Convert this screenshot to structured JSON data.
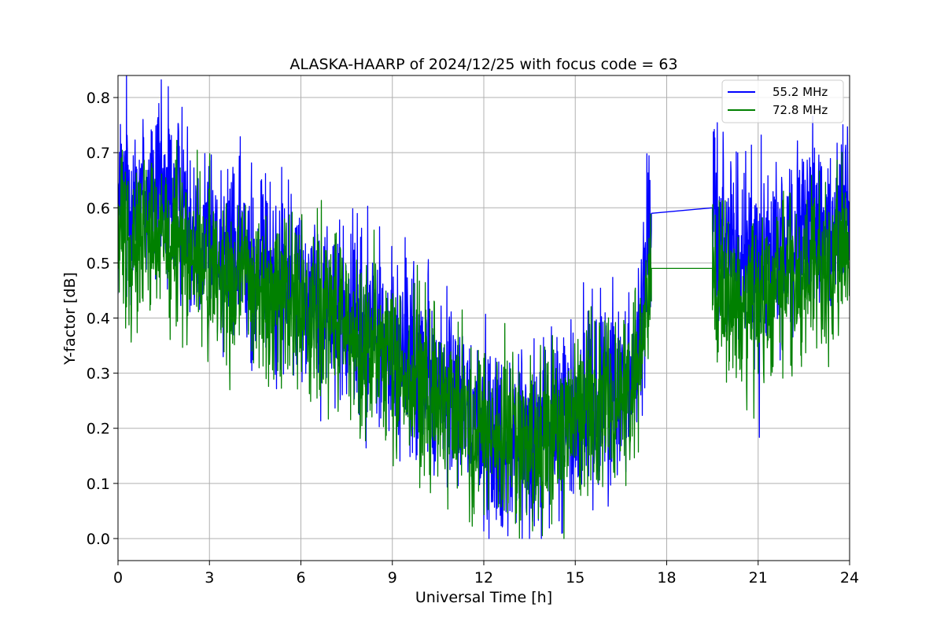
{
  "chart_data": {
    "type": "line",
    "title": "ALASKA-HAARP of 2024/12/25 with focus code = 63",
    "xlabel": "Universal Time [h]",
    "ylabel": "Y-factor [dB]",
    "xlim": [
      0,
      24
    ],
    "ylim": [
      -0.04,
      0.84
    ],
    "xticks": [
      0,
      3,
      6,
      9,
      12,
      15,
      18,
      21,
      24
    ],
    "xtick_labels": [
      "0",
      "3",
      "6",
      "9",
      "12",
      "15",
      "18",
      "21",
      "24"
    ],
    "yticks": [
      0.0,
      0.1,
      0.2,
      0.3,
      0.4,
      0.5,
      0.6,
      0.7,
      0.8
    ],
    "ytick_labels": [
      "0.0",
      "0.1",
      "0.2",
      "0.3",
      "0.4",
      "0.5",
      "0.6",
      "0.7",
      "0.8"
    ],
    "grid": true,
    "legend_position": "top-right",
    "series": [
      {
        "name": "55.2 MHz",
        "color": "#0000ff",
        "x": [
          0,
          0.5,
          1,
          1.5,
          2,
          2.5,
          3,
          3.5,
          4,
          4.5,
          5,
          5.5,
          6,
          6.5,
          7,
          7.5,
          8,
          8.5,
          9,
          9.5,
          10,
          10.5,
          11,
          11.5,
          12,
          12.5,
          13,
          13.5,
          14,
          14.5,
          15,
          15.5,
          16,
          16.5,
          17,
          17.5,
          19.5,
          20,
          20.5,
          21,
          21.5,
          22,
          22.5,
          23,
          23.5,
          24
        ],
        "y": [
          0.6,
          0.62,
          0.63,
          0.62,
          0.61,
          0.58,
          0.55,
          0.53,
          0.51,
          0.5,
          0.48,
          0.46,
          0.45,
          0.44,
          0.42,
          0.41,
          0.39,
          0.37,
          0.35,
          0.33,
          0.3,
          0.27,
          0.25,
          0.22,
          0.2,
          0.18,
          0.17,
          0.17,
          0.19,
          0.21,
          0.23,
          0.25,
          0.27,
          0.29,
          0.31,
          0.59,
          0.6,
          0.52,
          0.5,
          0.5,
          0.51,
          0.53,
          0.55,
          0.56,
          0.57,
          0.58
        ]
      },
      {
        "name": "72.8 MHz",
        "color": "#008000",
        "x": [
          0,
          0.5,
          1,
          1.5,
          2,
          2.5,
          3,
          3.5,
          4,
          4.5,
          5,
          5.5,
          6,
          6.5,
          7,
          7.5,
          8,
          8.5,
          9,
          9.5,
          10,
          10.5,
          11,
          11.5,
          12,
          12.5,
          13,
          13.5,
          14,
          14.5,
          15,
          15.5,
          16,
          16.5,
          17,
          17.5,
          19.5,
          20,
          20.5,
          21,
          21.5,
          22,
          22.5,
          23,
          23.5,
          24
        ],
        "y": [
          0.54,
          0.55,
          0.55,
          0.54,
          0.53,
          0.51,
          0.49,
          0.47,
          0.46,
          0.45,
          0.44,
          0.43,
          0.42,
          0.41,
          0.4,
          0.38,
          0.36,
          0.34,
          0.32,
          0.3,
          0.27,
          0.25,
          0.23,
          0.21,
          0.19,
          0.17,
          0.16,
          0.16,
          0.18,
          0.2,
          0.22,
          0.24,
          0.26,
          0.27,
          0.29,
          0.49,
          0.49,
          0.44,
          0.43,
          0.43,
          0.44,
          0.46,
          0.48,
          0.49,
          0.5,
          0.51
        ]
      }
    ]
  }
}
